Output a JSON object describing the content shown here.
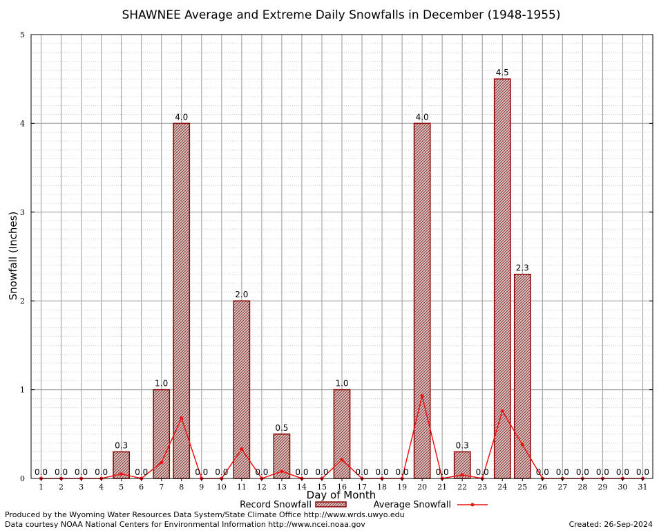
{
  "chart_data": {
    "type": "bar",
    "title": "SHAWNEE Average and Extreme Daily Snowfalls in December (1948-1955)",
    "xlabel": "Day of Month",
    "ylabel": "Snowfall (Inches)",
    "ylim": [
      0,
      5
    ],
    "yticks": [
      "0",
      "1",
      "2",
      "3",
      "4",
      "5"
    ],
    "grid": true,
    "categories": [
      "1",
      "2",
      "3",
      "4",
      "5",
      "6",
      "7",
      "8",
      "9",
      "10",
      "11",
      "12",
      "13",
      "14",
      "15",
      "16",
      "17",
      "18",
      "19",
      "20",
      "21",
      "22",
      "23",
      "24",
      "25",
      "26",
      "27",
      "28",
      "29",
      "30",
      "31"
    ],
    "series": [
      {
        "name": "Record Snowfall",
        "type": "bar",
        "color": "#8b0000",
        "values": [
          0.0,
          0.0,
          0.0,
          0.0,
          0.3,
          0.0,
          1.0,
          4.0,
          0.0,
          0.0,
          2.0,
          0.0,
          0.5,
          0.0,
          0.0,
          1.0,
          0.0,
          0.0,
          0.0,
          4.0,
          0.0,
          0.3,
          0.0,
          4.5,
          2.3,
          0.0,
          0.0,
          0.0,
          0.0,
          0.0,
          0.0
        ],
        "labels": [
          "0.0",
          "0.0",
          "0.0",
          "0.0",
          "0.3",
          "0.0",
          "1.0",
          "4.0",
          "0.0",
          "0.0",
          "2.0",
          "0.0",
          "0.5",
          "0.0",
          "0.0",
          "1.0",
          "0.0",
          "0.0",
          "0.0",
          "4.0",
          "0.0",
          "0.3",
          "0.0",
          "4.5",
          "2.3",
          "0.0",
          "0.0",
          "0.0",
          "0.0",
          "0.0",
          "0.0"
        ]
      },
      {
        "name": "Average Snowfall",
        "type": "line",
        "color": "#ee1111",
        "values": [
          0,
          0,
          0,
          0,
          0.05,
          0,
          0.18,
          0.68,
          0,
          0,
          0.33,
          0,
          0.08,
          0,
          0,
          0.21,
          0,
          0,
          0,
          0.93,
          0,
          0.04,
          0,
          0.76,
          0.38,
          0,
          0,
          0,
          0,
          0,
          0
        ]
      }
    ],
    "legend": "bottom-center"
  },
  "footer": {
    "line1": "Produced by the Wyoming Water Resources Data System/State Climate Office http://www.wrds.uwyo.edu",
    "line2": "Data courtesy NOAA National Centers for Environmental Information http://www.ncei.noaa.gov",
    "created": "Created:  26-Sep-2024"
  }
}
